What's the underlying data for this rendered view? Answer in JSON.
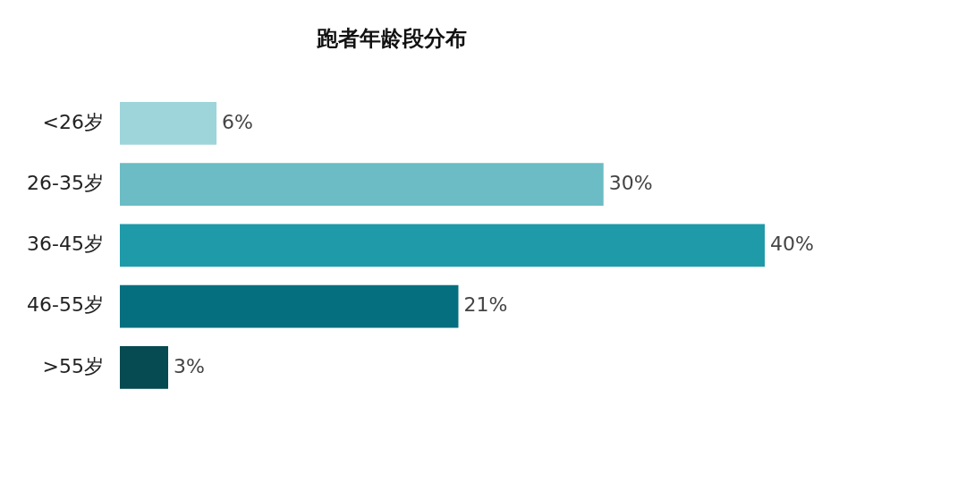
{
  "chart_data": {
    "type": "bar",
    "orientation": "horizontal",
    "title": "跑者年龄段分布",
    "categories": [
      "<26岁",
      "26-35岁",
      "36-45岁",
      "46-55岁",
      ">55岁"
    ],
    "values": [
      6,
      30,
      40,
      21,
      3
    ],
    "colors": [
      "#9dd5da",
      "#6bbcc4",
      "#1e9aa8",
      "#066f7f",
      "#064a52"
    ],
    "value_labels": [
      "6%",
      "30%",
      "40%",
      "21%",
      "3%"
    ],
    "legend": false
  }
}
